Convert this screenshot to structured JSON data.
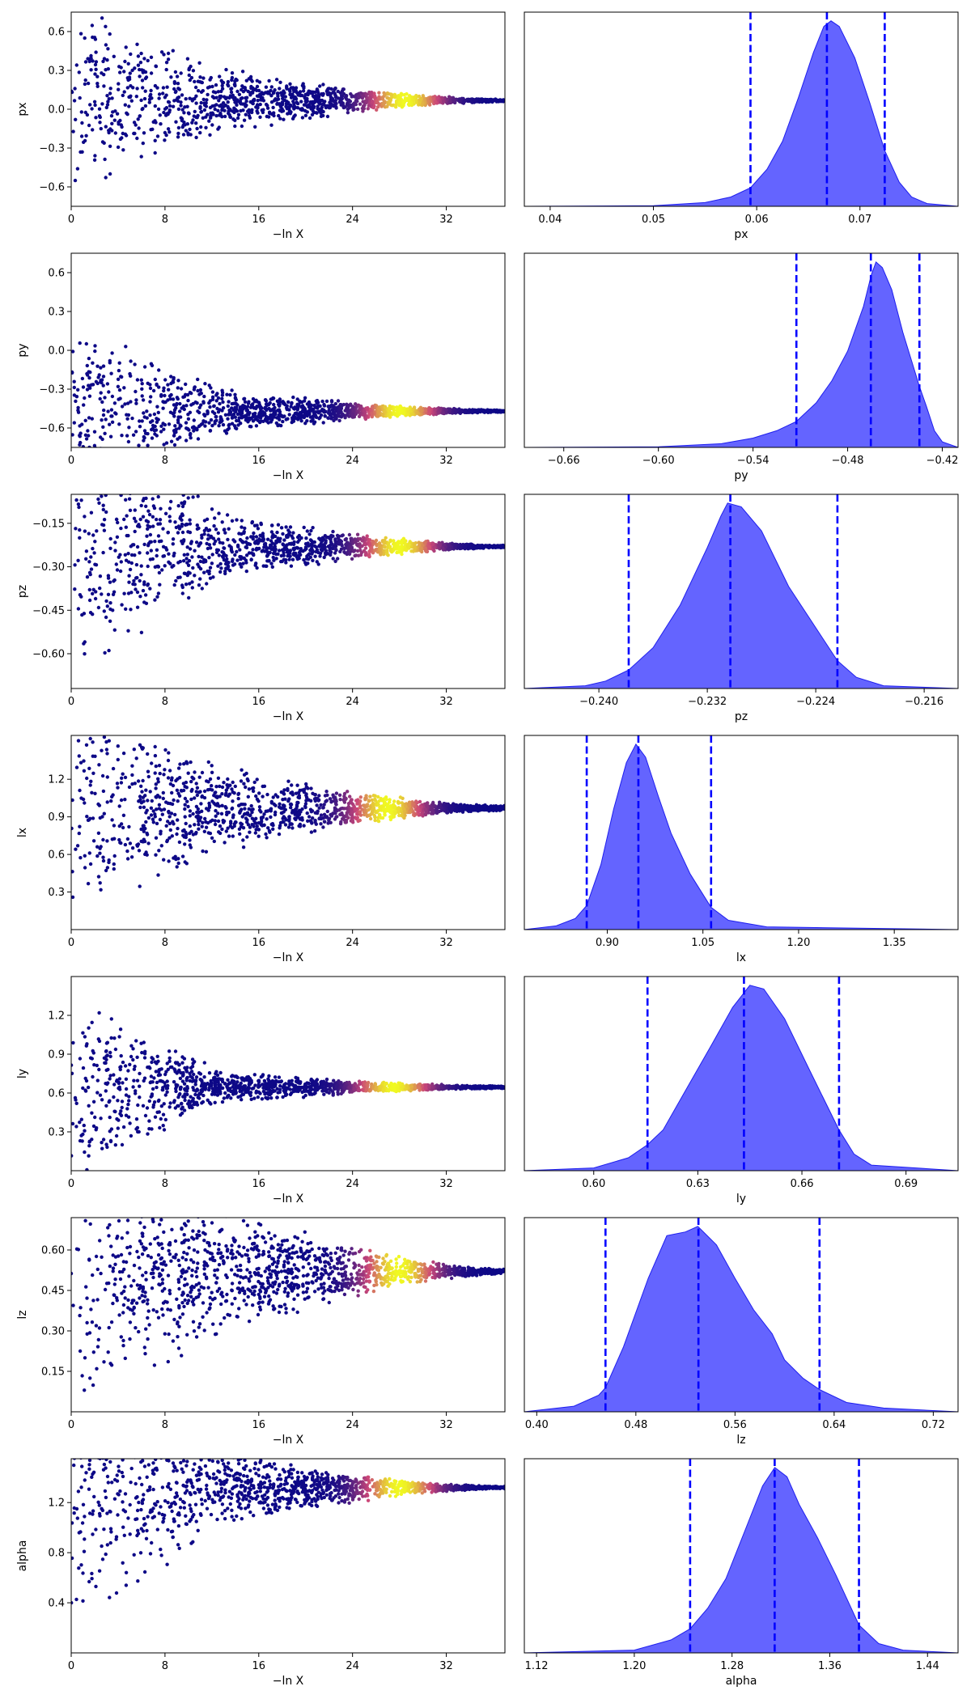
{
  "colors": {
    "trace_low": "#0d0887",
    "trace_mid": "#cc4778",
    "trace_high": "#f0f921",
    "posterior_fill": "#6464ff",
    "posterior_edge": "#1e1eee",
    "quantile_line": "#0000ff"
  },
  "chart_data": [
    {
      "param": "px",
      "trace": {
        "type": "scatter",
        "xlabel": "−ln X",
        "ylabel": "px",
        "xlim": [
          0,
          37
        ],
        "xticks": [
          0,
          8,
          16,
          24,
          32
        ],
        "ylim": [
          -0.75,
          0.75
        ],
        "yticks": [
          -0.6,
          -0.3,
          0.0,
          0.3,
          0.6
        ],
        "ytick_labels": [
          "−0.6",
          "−0.3",
          "0.0",
          "0.3",
          "0.6"
        ],
        "center": 0.067,
        "spread_start": 0.75,
        "spread_mid": 0.25,
        "spread_end": 0.01,
        "peak": 28.5
      },
      "posterior": {
        "type": "area",
        "xlabel": "px",
        "xlim": [
          0.0375,
          0.0795
        ],
        "xticks": [
          0.04,
          0.05,
          0.06,
          0.07
        ],
        "xtick_labels": [
          "0.04",
          "0.05",
          "0.06",
          "0.07"
        ],
        "quantiles": [
          0.0594,
          0.0668,
          0.0724
        ],
        "peak_x": 0.0672,
        "curve": [
          [
            0.0375,
            0
          ],
          [
            0.05,
            0.003
          ],
          [
            0.055,
            0.02
          ],
          [
            0.0575,
            0.05
          ],
          [
            0.0594,
            0.1
          ],
          [
            0.061,
            0.2
          ],
          [
            0.0625,
            0.35
          ],
          [
            0.064,
            0.58
          ],
          [
            0.0655,
            0.83
          ],
          [
            0.0665,
            0.97
          ],
          [
            0.0672,
            1.0
          ],
          [
            0.068,
            0.97
          ],
          [
            0.0695,
            0.8
          ],
          [
            0.071,
            0.55
          ],
          [
            0.0724,
            0.3
          ],
          [
            0.0738,
            0.13
          ],
          [
            0.075,
            0.05
          ],
          [
            0.0765,
            0.015
          ],
          [
            0.0795,
            0
          ]
        ]
      }
    },
    {
      "param": "py",
      "trace": {
        "type": "scatter",
        "xlabel": "−ln X",
        "ylabel": "py",
        "xlim": [
          0,
          37
        ],
        "xticks": [
          0,
          8,
          16,
          24,
          32
        ],
        "ylim": [
          -0.75,
          0.75
        ],
        "yticks": [
          -0.6,
          -0.3,
          0.0,
          0.3,
          0.6
        ],
        "ytick_labels": [
          "−0.6",
          "−0.3",
          "0.0",
          "0.3",
          "0.6"
        ],
        "center": -0.47,
        "spread_start": 0.75,
        "spread_mid": 0.18,
        "spread_end": 0.01,
        "peak": 28
      },
      "posterior": {
        "type": "area",
        "xlabel": "py",
        "xlim": [
          -0.685,
          -0.41
        ],
        "xticks": [
          -0.66,
          -0.6,
          -0.54,
          -0.48,
          -0.42
        ],
        "xtick_labels": [
          "−0.66",
          "−0.60",
          "−0.54",
          "−0.48",
          "−0.42"
        ],
        "quantiles": [
          -0.5125,
          -0.4653,
          -0.4345
        ],
        "peak_x": -0.462,
        "curve": [
          [
            -0.685,
            0
          ],
          [
            -0.6,
            0.003
          ],
          [
            -0.56,
            0.02
          ],
          [
            -0.54,
            0.05
          ],
          [
            -0.525,
            0.09
          ],
          [
            -0.5125,
            0.14
          ],
          [
            -0.5,
            0.24
          ],
          [
            -0.49,
            0.36
          ],
          [
            -0.48,
            0.52
          ],
          [
            -0.47,
            0.76
          ],
          [
            -0.465,
            0.93
          ],
          [
            -0.462,
            1.0
          ],
          [
            -0.458,
            0.97
          ],
          [
            -0.452,
            0.85
          ],
          [
            -0.445,
            0.62
          ],
          [
            -0.4345,
            0.33
          ],
          [
            -0.43,
            0.22
          ],
          [
            -0.425,
            0.09
          ],
          [
            -0.42,
            0.03
          ],
          [
            -0.41,
            0
          ]
        ]
      }
    },
    {
      "param": "pz",
      "trace": {
        "type": "scatter",
        "xlabel": "−ln X",
        "ylabel": "pz",
        "xlim": [
          0,
          37
        ],
        "xticks": [
          0,
          8,
          16,
          24,
          32
        ],
        "ylim": [
          -0.72,
          -0.05
        ],
        "yticks": [
          -0.6,
          -0.45,
          -0.3,
          -0.15
        ],
        "ytick_labels": [
          "−0.60",
          "−0.45",
          "−0.30",
          "−0.15"
        ],
        "center": -0.23,
        "spread_start": 0.5,
        "spread_mid": 0.12,
        "spread_end": 0.005,
        "peak": 28
      },
      "posterior": {
        "type": "area",
        "xlabel": "pz",
        "xlim": [
          -0.2455,
          -0.2135
        ],
        "xticks": [
          -0.24,
          -0.232,
          -0.224,
          -0.216
        ],
        "xtick_labels": [
          "−0.240",
          "−0.232",
          "−0.224",
          "−0.216"
        ],
        "quantiles": [
          -0.2378,
          -0.2303,
          -0.2224
        ],
        "peak_x": -0.2305,
        "curve": [
          [
            -0.2455,
            0
          ],
          [
            -0.241,
            0.015
          ],
          [
            -0.2395,
            0.04
          ],
          [
            -0.2378,
            0.1
          ],
          [
            -0.236,
            0.22
          ],
          [
            -0.234,
            0.45
          ],
          [
            -0.232,
            0.76
          ],
          [
            -0.231,
            0.93
          ],
          [
            -0.2305,
            1.0
          ],
          [
            -0.2295,
            0.98
          ],
          [
            -0.228,
            0.85
          ],
          [
            -0.226,
            0.55
          ],
          [
            -0.2224,
            0.15
          ],
          [
            -0.221,
            0.06
          ],
          [
            -0.219,
            0.015
          ],
          [
            -0.2135,
            0
          ]
        ]
      }
    },
    {
      "param": "lx",
      "trace": {
        "type": "scatter",
        "xlabel": "−ln X",
        "ylabel": "lx",
        "xlim": [
          0,
          37
        ],
        "xticks": [
          0,
          8,
          16,
          24,
          32
        ],
        "ylim": [
          0.0,
          1.55
        ],
        "yticks": [
          0.3,
          0.6,
          0.9,
          1.2
        ],
        "ytick_labels": [
          "0.3",
          "0.6",
          "0.9",
          "1.2"
        ],
        "center": 0.97,
        "spread_start": 0.9,
        "spread_mid": 0.35,
        "spread_end": 0.02,
        "peak": 27
      },
      "posterior": {
        "type": "area",
        "xlabel": "lx",
        "xlim": [
          0.77,
          1.45
        ],
        "xticks": [
          0.9,
          1.05,
          1.2,
          1.35
        ],
        "xtick_labels": [
          "0.90",
          "1.05",
          "1.20",
          "1.35"
        ],
        "quantiles": [
          0.8678,
          0.9488,
          1.0628
        ],
        "peak_x": 0.945,
        "curve": [
          [
            0.77,
            0
          ],
          [
            0.82,
            0.02
          ],
          [
            0.85,
            0.06
          ],
          [
            0.8678,
            0.13
          ],
          [
            0.89,
            0.35
          ],
          [
            0.91,
            0.65
          ],
          [
            0.93,
            0.9
          ],
          [
            0.945,
            1.0
          ],
          [
            0.96,
            0.93
          ],
          [
            0.98,
            0.72
          ],
          [
            1.0,
            0.52
          ],
          [
            1.03,
            0.3
          ],
          [
            1.0628,
            0.12
          ],
          [
            1.09,
            0.05
          ],
          [
            1.15,
            0.015
          ],
          [
            1.45,
            0
          ]
        ]
      }
    },
    {
      "param": "ly",
      "trace": {
        "type": "scatter",
        "xlabel": "−ln X",
        "ylabel": "ly",
        "xlim": [
          0,
          37
        ],
        "xticks": [
          0,
          8,
          16,
          24,
          32
        ],
        "ylim": [
          0.0,
          1.5
        ],
        "yticks": [
          0.3,
          0.6,
          0.9,
          1.2
        ],
        "ytick_labels": [
          "0.3",
          "0.6",
          "0.9",
          "1.2"
        ],
        "center": 0.645,
        "spread_start": 0.75,
        "spread_mid": 0.12,
        "spread_end": 0.01,
        "peak": 27.5
      },
      "posterior": {
        "type": "area",
        "xlabel": "ly",
        "xlim": [
          0.58,
          0.705
        ],
        "xticks": [
          0.6,
          0.63,
          0.66,
          0.69
        ],
        "xtick_labels": [
          "0.60",
          "0.63",
          "0.66",
          "0.69"
        ],
        "quantiles": [
          0.6155,
          0.6433,
          0.6707
        ],
        "peak_x": 0.645,
        "curve": [
          [
            0.58,
            0
          ],
          [
            0.6,
            0.015
          ],
          [
            0.61,
            0.07
          ],
          [
            0.6155,
            0.14
          ],
          [
            0.62,
            0.22
          ],
          [
            0.627,
            0.45
          ],
          [
            0.634,
            0.68
          ],
          [
            0.64,
            0.88
          ],
          [
            0.645,
            1.0
          ],
          [
            0.649,
            0.98
          ],
          [
            0.655,
            0.82
          ],
          [
            0.662,
            0.55
          ],
          [
            0.6707,
            0.22
          ],
          [
            0.675,
            0.09
          ],
          [
            0.68,
            0.03
          ],
          [
            0.705,
            0
          ]
        ]
      }
    },
    {
      "param": "lz",
      "trace": {
        "type": "scatter",
        "xlabel": "−ln X",
        "ylabel": "lz",
        "xlim": [
          0,
          37
        ],
        "xticks": [
          0,
          8,
          16,
          24,
          32
        ],
        "ylim": [
          0.0,
          0.72
        ],
        "yticks": [
          0.15,
          0.3,
          0.45,
          0.6
        ],
        "ytick_labels": [
          "0.15",
          "0.30",
          "0.45",
          "0.60"
        ],
        "center": 0.52,
        "spread_start": 0.55,
        "spread_mid": 0.25,
        "spread_end": 0.01,
        "peak": 28
      },
      "posterior": {
        "type": "area",
        "xlabel": "lz",
        "xlim": [
          0.39,
          0.74
        ],
        "xticks": [
          0.4,
          0.48,
          0.56,
          0.64,
          0.72
        ],
        "xtick_labels": [
          "0.40",
          "0.48",
          "0.56",
          "0.64",
          "0.72"
        ],
        "quantiles": [
          0.4555,
          0.5305,
          0.6282
        ],
        "peak_x": 0.53,
        "curve": [
          [
            0.39,
            0
          ],
          [
            0.43,
            0.03
          ],
          [
            0.45,
            0.09
          ],
          [
            0.4555,
            0.13
          ],
          [
            0.47,
            0.35
          ],
          [
            0.49,
            0.72
          ],
          [
            0.505,
            0.95
          ],
          [
            0.52,
            0.97
          ],
          [
            0.53,
            1.0
          ],
          [
            0.545,
            0.9
          ],
          [
            0.56,
            0.72
          ],
          [
            0.575,
            0.55
          ],
          [
            0.59,
            0.42
          ],
          [
            0.6,
            0.28
          ],
          [
            0.615,
            0.18
          ],
          [
            0.6282,
            0.12
          ],
          [
            0.65,
            0.05
          ],
          [
            0.68,
            0.02
          ],
          [
            0.74,
            0
          ]
        ]
      }
    },
    {
      "param": "alpha",
      "trace": {
        "type": "scatter",
        "xlabel": "−ln X",
        "ylabel": "alpha",
        "xlim": [
          0,
          37
        ],
        "xticks": [
          0,
          8,
          16,
          24,
          32
        ],
        "ylim": [
          0.0,
          1.55
        ],
        "yticks": [
          0.4,
          0.8,
          1.2
        ],
        "ytick_labels": [
          "0.4",
          "0.8",
          "1.2"
        ],
        "center": 1.32,
        "spread_start": 1.3,
        "spread_mid": 0.3,
        "spread_end": 0.01,
        "peak": 28
      },
      "posterior": {
        "type": "area",
        "xlabel": "alpha",
        "xlim": [
          1.11,
          1.465
        ],
        "xticks": [
          1.12,
          1.2,
          1.28,
          1.36,
          1.44
        ],
        "xtick_labels": [
          "1.12",
          "1.20",
          "1.28",
          "1.36",
          "1.44"
        ],
        "quantiles": [
          1.2457,
          1.3149,
          1.3839
        ],
        "peak_x": 1.315,
        "curve": [
          [
            1.11,
            0
          ],
          [
            1.2,
            0.015
          ],
          [
            1.23,
            0.07
          ],
          [
            1.2457,
            0.13
          ],
          [
            1.26,
            0.24
          ],
          [
            1.275,
            0.4
          ],
          [
            1.29,
            0.65
          ],
          [
            1.305,
            0.9
          ],
          [
            1.315,
            1.0
          ],
          [
            1.325,
            0.95
          ],
          [
            1.335,
            0.8
          ],
          [
            1.35,
            0.62
          ],
          [
            1.365,
            0.42
          ],
          [
            1.3839,
            0.15
          ],
          [
            1.4,
            0.05
          ],
          [
            1.42,
            0.015
          ],
          [
            1.465,
            0
          ]
        ]
      }
    }
  ]
}
